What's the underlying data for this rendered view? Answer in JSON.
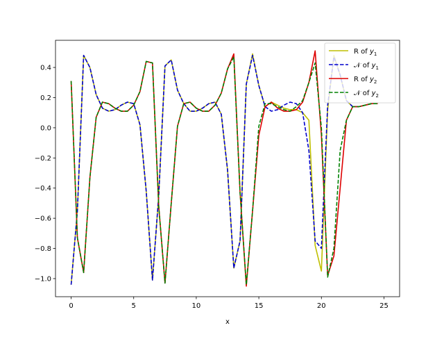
{
  "chart_data": {
    "type": "line",
    "title": "",
    "xlabel": "x",
    "ylabel": "",
    "xlim": [
      -1.25,
      26.25
    ],
    "ylim": [
      -1.12,
      0.58
    ],
    "xticks": [
      0,
      5,
      10,
      15,
      20,
      25
    ],
    "yticks": [
      -1.0,
      -0.8,
      -0.6,
      -0.4,
      -0.2,
      0.0,
      0.2,
      0.4
    ],
    "grid": false,
    "legend_position": "top-right",
    "x": [
      0,
      0.5,
      1,
      1.5,
      2,
      2.5,
      3,
      3.5,
      4,
      4.5,
      5,
      5.5,
      6,
      6.5,
      7,
      7.5,
      8,
      8.5,
      9,
      9.5,
      10,
      10.5,
      11,
      11.5,
      12,
      12.5,
      13,
      13.5,
      14,
      14.5,
      15,
      15.5,
      16,
      16.5,
      17,
      17.5,
      18,
      18.5,
      19,
      19.5,
      20,
      20.5,
      21,
      21.5,
      22,
      22.5,
      23,
      23.5,
      24,
      24.5
    ],
    "series": [
      {
        "name": "R of y₁",
        "color": "#bfbf00",
        "style": "solid",
        "values": [
          -1.04,
          -0.55,
          0.48,
          0.4,
          0.22,
          0.13,
          0.11,
          0.12,
          0.15,
          0.17,
          0.16,
          0.02,
          -0.42,
          -1.01,
          -0.45,
          0.41,
          0.45,
          0.25,
          0.16,
          0.11,
          0.11,
          0.13,
          0.16,
          0.17,
          0.09,
          -0.28,
          -0.93,
          -0.75,
          0.29,
          0.49,
          0.28,
          0.14,
          0.17,
          0.15,
          0.13,
          0.12,
          0.12,
          0.1,
          0.05,
          -0.78,
          -0.95,
          0.12,
          0.48,
          0.35,
          0.18,
          0.14,
          0.14,
          0.15,
          0.16,
          0.16
        ]
      },
      {
        "name": "𝒩 of y₁",
        "color": "#0000cc",
        "style": "dashed",
        "values": [
          -1.04,
          -0.55,
          0.48,
          0.4,
          0.22,
          0.13,
          0.11,
          0.12,
          0.15,
          0.17,
          0.16,
          0.02,
          -0.42,
          -1.01,
          -0.45,
          0.41,
          0.45,
          0.25,
          0.16,
          0.11,
          0.11,
          0.13,
          0.16,
          0.17,
          0.09,
          -0.28,
          -0.93,
          -0.75,
          0.29,
          0.48,
          0.28,
          0.14,
          0.11,
          0.12,
          0.15,
          0.17,
          0.16,
          0.1,
          -0.15,
          -0.75,
          -0.8,
          0.15,
          0.47,
          0.35,
          0.18,
          0.14,
          0.14,
          0.15,
          0.16,
          0.16
        ]
      },
      {
        "name": "R of y₂",
        "color": "#dd0000",
        "style": "solid",
        "values": [
          0.31,
          -0.73,
          -0.96,
          -0.33,
          0.07,
          0.17,
          0.16,
          0.13,
          0.11,
          0.11,
          0.15,
          0.24,
          0.44,
          0.43,
          -0.52,
          -1.03,
          -0.5,
          0.01,
          0.16,
          0.17,
          0.13,
          0.11,
          0.11,
          0.15,
          0.23,
          0.39,
          0.49,
          -0.43,
          -1.05,
          -0.55,
          -0.05,
          0.14,
          0.17,
          0.13,
          0.11,
          0.11,
          0.12,
          0.17,
          0.3,
          0.51,
          -0.05,
          -0.98,
          -0.85,
          -0.4,
          0.05,
          0.14,
          0.14,
          0.15,
          0.16,
          0.16
        ]
      },
      {
        "name": "𝒩 of y₂",
        "color": "#008000",
        "style": "dashed",
        "values": [
          0.31,
          -0.73,
          -0.96,
          -0.33,
          0.07,
          0.17,
          0.16,
          0.13,
          0.11,
          0.11,
          0.15,
          0.24,
          0.44,
          0.43,
          -0.52,
          -1.03,
          -0.5,
          0.01,
          0.16,
          0.17,
          0.13,
          0.11,
          0.11,
          0.15,
          0.23,
          0.39,
          0.47,
          -0.43,
          -1.04,
          -0.55,
          0.01,
          0.16,
          0.16,
          0.14,
          0.12,
          0.11,
          0.14,
          0.18,
          0.3,
          0.43,
          0.0,
          -0.99,
          -0.8,
          -0.15,
          0.05,
          0.14,
          0.14,
          0.15,
          0.16,
          0.16
        ]
      }
    ]
  },
  "legend": {
    "items": [
      {
        "prefix": "R of ",
        "var": "y",
        "sub": "1"
      },
      {
        "prefix": "𝒩 of ",
        "var": "y",
        "sub": "1"
      },
      {
        "prefix": "R of ",
        "var": "y",
        "sub": "2"
      },
      {
        "prefix": "𝒩 of ",
        "var": "y",
        "sub": "2"
      }
    ]
  }
}
